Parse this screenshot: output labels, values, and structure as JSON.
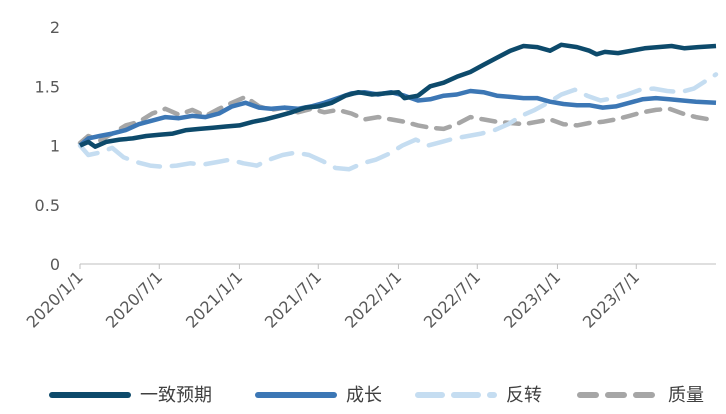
{
  "chart_data": {
    "type": "line",
    "x_start": "2020-01-01",
    "x_end": "2023-12-31",
    "x_ticks": [
      "2020/1/1",
      "2020/7/1",
      "2021/1/1",
      "2021/7/1",
      "2022/1/1",
      "2022/7/1",
      "2023/1/1",
      "2023/7/1"
    ],
    "y_ticks": [
      "0",
      "0.5",
      "1",
      "1.5",
      "2"
    ],
    "ylim": [
      0,
      2
    ],
    "grid": false,
    "legend_position": "bottom",
    "series": [
      {
        "name": "一致预期",
        "color": "#0D4A6B",
        "style": "solid",
        "points": [
          [
            "2020-01-01",
            1.0
          ],
          [
            "2020-01-20",
            1.03
          ],
          [
            "2020-02-05",
            0.99
          ],
          [
            "2020-03-01",
            1.03
          ],
          [
            "2020-04-01",
            1.05
          ],
          [
            "2020-05-01",
            1.06
          ],
          [
            "2020-06-01",
            1.08
          ],
          [
            "2020-07-01",
            1.09
          ],
          [
            "2020-08-01",
            1.1
          ],
          [
            "2020-09-01",
            1.13
          ],
          [
            "2020-10-01",
            1.14
          ],
          [
            "2020-11-01",
            1.15
          ],
          [
            "2020-12-01",
            1.16
          ],
          [
            "2021-01-01",
            1.17
          ],
          [
            "2021-02-01",
            1.2
          ],
          [
            "2021-03-01",
            1.22
          ],
          [
            "2021-04-01",
            1.25
          ],
          [
            "2021-05-01",
            1.28
          ],
          [
            "2021-06-01",
            1.32
          ],
          [
            "2021-07-01",
            1.33
          ],
          [
            "2021-08-01",
            1.36
          ],
          [
            "2021-09-01",
            1.42
          ],
          [
            "2021-10-01",
            1.45
          ],
          [
            "2021-11-01",
            1.43
          ],
          [
            "2021-12-01",
            1.44
          ],
          [
            "2022-01-01",
            1.45
          ],
          [
            "2022-01-15",
            1.4
          ],
          [
            "2022-02-15",
            1.42
          ],
          [
            "2022-03-15",
            1.5
          ],
          [
            "2022-04-15",
            1.53
          ],
          [
            "2022-05-15",
            1.58
          ],
          [
            "2022-06-15",
            1.62
          ],
          [
            "2022-07-15",
            1.68
          ],
          [
            "2022-08-15",
            1.74
          ],
          [
            "2022-09-15",
            1.8
          ],
          [
            "2022-10-15",
            1.84
          ],
          [
            "2022-11-15",
            1.83
          ],
          [
            "2022-12-15",
            1.8
          ],
          [
            "2023-01-10",
            1.85
          ],
          [
            "2023-02-15",
            1.83
          ],
          [
            "2023-03-15",
            1.8
          ],
          [
            "2023-04-01",
            1.77
          ],
          [
            "2023-04-20",
            1.79
          ],
          [
            "2023-05-20",
            1.78
          ],
          [
            "2023-06-20",
            1.8
          ],
          [
            "2023-07-20",
            1.82
          ],
          [
            "2023-08-20",
            1.83
          ],
          [
            "2023-09-20",
            1.84
          ],
          [
            "2023-10-20",
            1.82
          ],
          [
            "2023-11-20",
            1.83
          ],
          [
            "2023-12-31",
            1.84
          ]
        ]
      },
      {
        "name": "成长",
        "color": "#3C77B5",
        "style": "solid",
        "points": [
          [
            "2020-01-01",
            1.0
          ],
          [
            "2020-01-20",
            1.06
          ],
          [
            "2020-02-15",
            1.08
          ],
          [
            "2020-03-15",
            1.1
          ],
          [
            "2020-04-15",
            1.13
          ],
          [
            "2020-05-15",
            1.18
          ],
          [
            "2020-06-15",
            1.21
          ],
          [
            "2020-07-15",
            1.24
          ],
          [
            "2020-08-15",
            1.23
          ],
          [
            "2020-09-15",
            1.25
          ],
          [
            "2020-10-15",
            1.24
          ],
          [
            "2020-11-15",
            1.27
          ],
          [
            "2020-12-15",
            1.33
          ],
          [
            "2021-01-15",
            1.36
          ],
          [
            "2021-02-15",
            1.32
          ],
          [
            "2021-03-15",
            1.31
          ],
          [
            "2021-04-15",
            1.32
          ],
          [
            "2021-05-15",
            1.31
          ],
          [
            "2021-06-15",
            1.33
          ],
          [
            "2021-07-15",
            1.36
          ],
          [
            "2021-08-15",
            1.4
          ],
          [
            "2021-09-15",
            1.44
          ],
          [
            "2021-10-15",
            1.45
          ],
          [
            "2021-11-15",
            1.43
          ],
          [
            "2021-12-15",
            1.45
          ],
          [
            "2022-01-15",
            1.42
          ],
          [
            "2022-02-15",
            1.38
          ],
          [
            "2022-03-15",
            1.39
          ],
          [
            "2022-04-15",
            1.42
          ],
          [
            "2022-05-15",
            1.43
          ],
          [
            "2022-06-15",
            1.46
          ],
          [
            "2022-07-15",
            1.45
          ],
          [
            "2022-08-15",
            1.42
          ],
          [
            "2022-09-15",
            1.41
          ],
          [
            "2022-10-15",
            1.4
          ],
          [
            "2022-11-15",
            1.4
          ],
          [
            "2022-12-15",
            1.37
          ],
          [
            "2023-01-15",
            1.35
          ],
          [
            "2023-02-15",
            1.34
          ],
          [
            "2023-03-15",
            1.34
          ],
          [
            "2023-04-15",
            1.32
          ],
          [
            "2023-05-15",
            1.33
          ],
          [
            "2023-06-15",
            1.36
          ],
          [
            "2023-07-15",
            1.39
          ],
          [
            "2023-08-15",
            1.4
          ],
          [
            "2023-09-15",
            1.39
          ],
          [
            "2023-10-15",
            1.38
          ],
          [
            "2023-11-15",
            1.37
          ],
          [
            "2023-12-31",
            1.36
          ]
        ]
      },
      {
        "name": "反转",
        "color": "#C5DDF1",
        "style": "dashed",
        "points": [
          [
            "2020-01-01",
            1.0
          ],
          [
            "2020-01-20",
            0.92
          ],
          [
            "2020-02-15",
            0.94
          ],
          [
            "2020-03-15",
            0.98
          ],
          [
            "2020-04-10",
            0.9
          ],
          [
            "2020-05-10",
            0.86
          ],
          [
            "2020-06-10",
            0.83
          ],
          [
            "2020-07-10",
            0.82
          ],
          [
            "2020-08-10",
            0.83
          ],
          [
            "2020-09-10",
            0.85
          ],
          [
            "2020-10-10",
            0.84
          ],
          [
            "2020-11-10",
            0.86
          ],
          [
            "2020-12-10",
            0.88
          ],
          [
            "2021-01-10",
            0.85
          ],
          [
            "2021-02-10",
            0.83
          ],
          [
            "2021-03-10",
            0.88
          ],
          [
            "2021-04-10",
            0.92
          ],
          [
            "2021-05-10",
            0.94
          ],
          [
            "2021-06-10",
            0.92
          ],
          [
            "2021-07-10",
            0.87
          ],
          [
            "2021-08-10",
            0.81
          ],
          [
            "2021-09-10",
            0.8
          ],
          [
            "2021-10-10",
            0.85
          ],
          [
            "2021-11-10",
            0.88
          ],
          [
            "2021-12-10",
            0.93
          ],
          [
            "2022-01-10",
            1.0
          ],
          [
            "2022-02-10",
            1.05
          ],
          [
            "2022-03-10",
            1.0
          ],
          [
            "2022-04-10",
            1.03
          ],
          [
            "2022-05-10",
            1.06
          ],
          [
            "2022-06-10",
            1.08
          ],
          [
            "2022-07-10",
            1.1
          ],
          [
            "2022-08-10",
            1.13
          ],
          [
            "2022-09-10",
            1.18
          ],
          [
            "2022-10-10",
            1.25
          ],
          [
            "2022-11-10",
            1.3
          ],
          [
            "2022-12-10",
            1.36
          ],
          [
            "2023-01-10",
            1.43
          ],
          [
            "2023-02-10",
            1.47
          ],
          [
            "2023-03-10",
            1.42
          ],
          [
            "2023-04-10",
            1.38
          ],
          [
            "2023-05-10",
            1.4
          ],
          [
            "2023-06-10",
            1.43
          ],
          [
            "2023-07-10",
            1.47
          ],
          [
            "2023-08-10",
            1.48
          ],
          [
            "2023-09-10",
            1.46
          ],
          [
            "2023-10-10",
            1.45
          ],
          [
            "2023-11-10",
            1.48
          ],
          [
            "2023-12-31",
            1.6
          ]
        ]
      },
      {
        "name": "质量",
        "color": "#A6A6A6",
        "style": "dashed",
        "points": [
          [
            "2020-01-01",
            1.02
          ],
          [
            "2020-01-20",
            1.08
          ],
          [
            "2020-02-15",
            1.04
          ],
          [
            "2020-03-15",
            1.1
          ],
          [
            "2020-04-15",
            1.17
          ],
          [
            "2020-05-15",
            1.2
          ],
          [
            "2020-06-15",
            1.27
          ],
          [
            "2020-07-15",
            1.31
          ],
          [
            "2020-08-15",
            1.26
          ],
          [
            "2020-09-15",
            1.3
          ],
          [
            "2020-10-15",
            1.25
          ],
          [
            "2020-11-15",
            1.31
          ],
          [
            "2020-12-15",
            1.36
          ],
          [
            "2021-01-15",
            1.41
          ],
          [
            "2021-02-15",
            1.33
          ],
          [
            "2021-03-15",
            1.3
          ],
          [
            "2021-04-15",
            1.32
          ],
          [
            "2021-05-15",
            1.28
          ],
          [
            "2021-06-15",
            1.31
          ],
          [
            "2021-07-15",
            1.28
          ],
          [
            "2021-08-15",
            1.3
          ],
          [
            "2021-09-15",
            1.27
          ],
          [
            "2021-10-15",
            1.22
          ],
          [
            "2021-11-15",
            1.24
          ],
          [
            "2021-12-15",
            1.22
          ],
          [
            "2022-01-15",
            1.2
          ],
          [
            "2022-02-15",
            1.17
          ],
          [
            "2022-03-15",
            1.15
          ],
          [
            "2022-04-15",
            1.14
          ],
          [
            "2022-05-15",
            1.18
          ],
          [
            "2022-06-15",
            1.24
          ],
          [
            "2022-07-15",
            1.22
          ],
          [
            "2022-08-15",
            1.2
          ],
          [
            "2022-09-15",
            1.19
          ],
          [
            "2022-10-15",
            1.18
          ],
          [
            "2022-11-15",
            1.2
          ],
          [
            "2022-12-15",
            1.22
          ],
          [
            "2023-01-15",
            1.18
          ],
          [
            "2023-02-15",
            1.17
          ],
          [
            "2023-03-15",
            1.19
          ],
          [
            "2023-04-15",
            1.2
          ],
          [
            "2023-05-15",
            1.22
          ],
          [
            "2023-06-15",
            1.25
          ],
          [
            "2023-07-15",
            1.28
          ],
          [
            "2023-08-15",
            1.3
          ],
          [
            "2023-09-15",
            1.31
          ],
          [
            "2023-10-15",
            1.27
          ],
          [
            "2023-11-15",
            1.24
          ],
          [
            "2023-12-31",
            1.21
          ]
        ]
      }
    ]
  }
}
